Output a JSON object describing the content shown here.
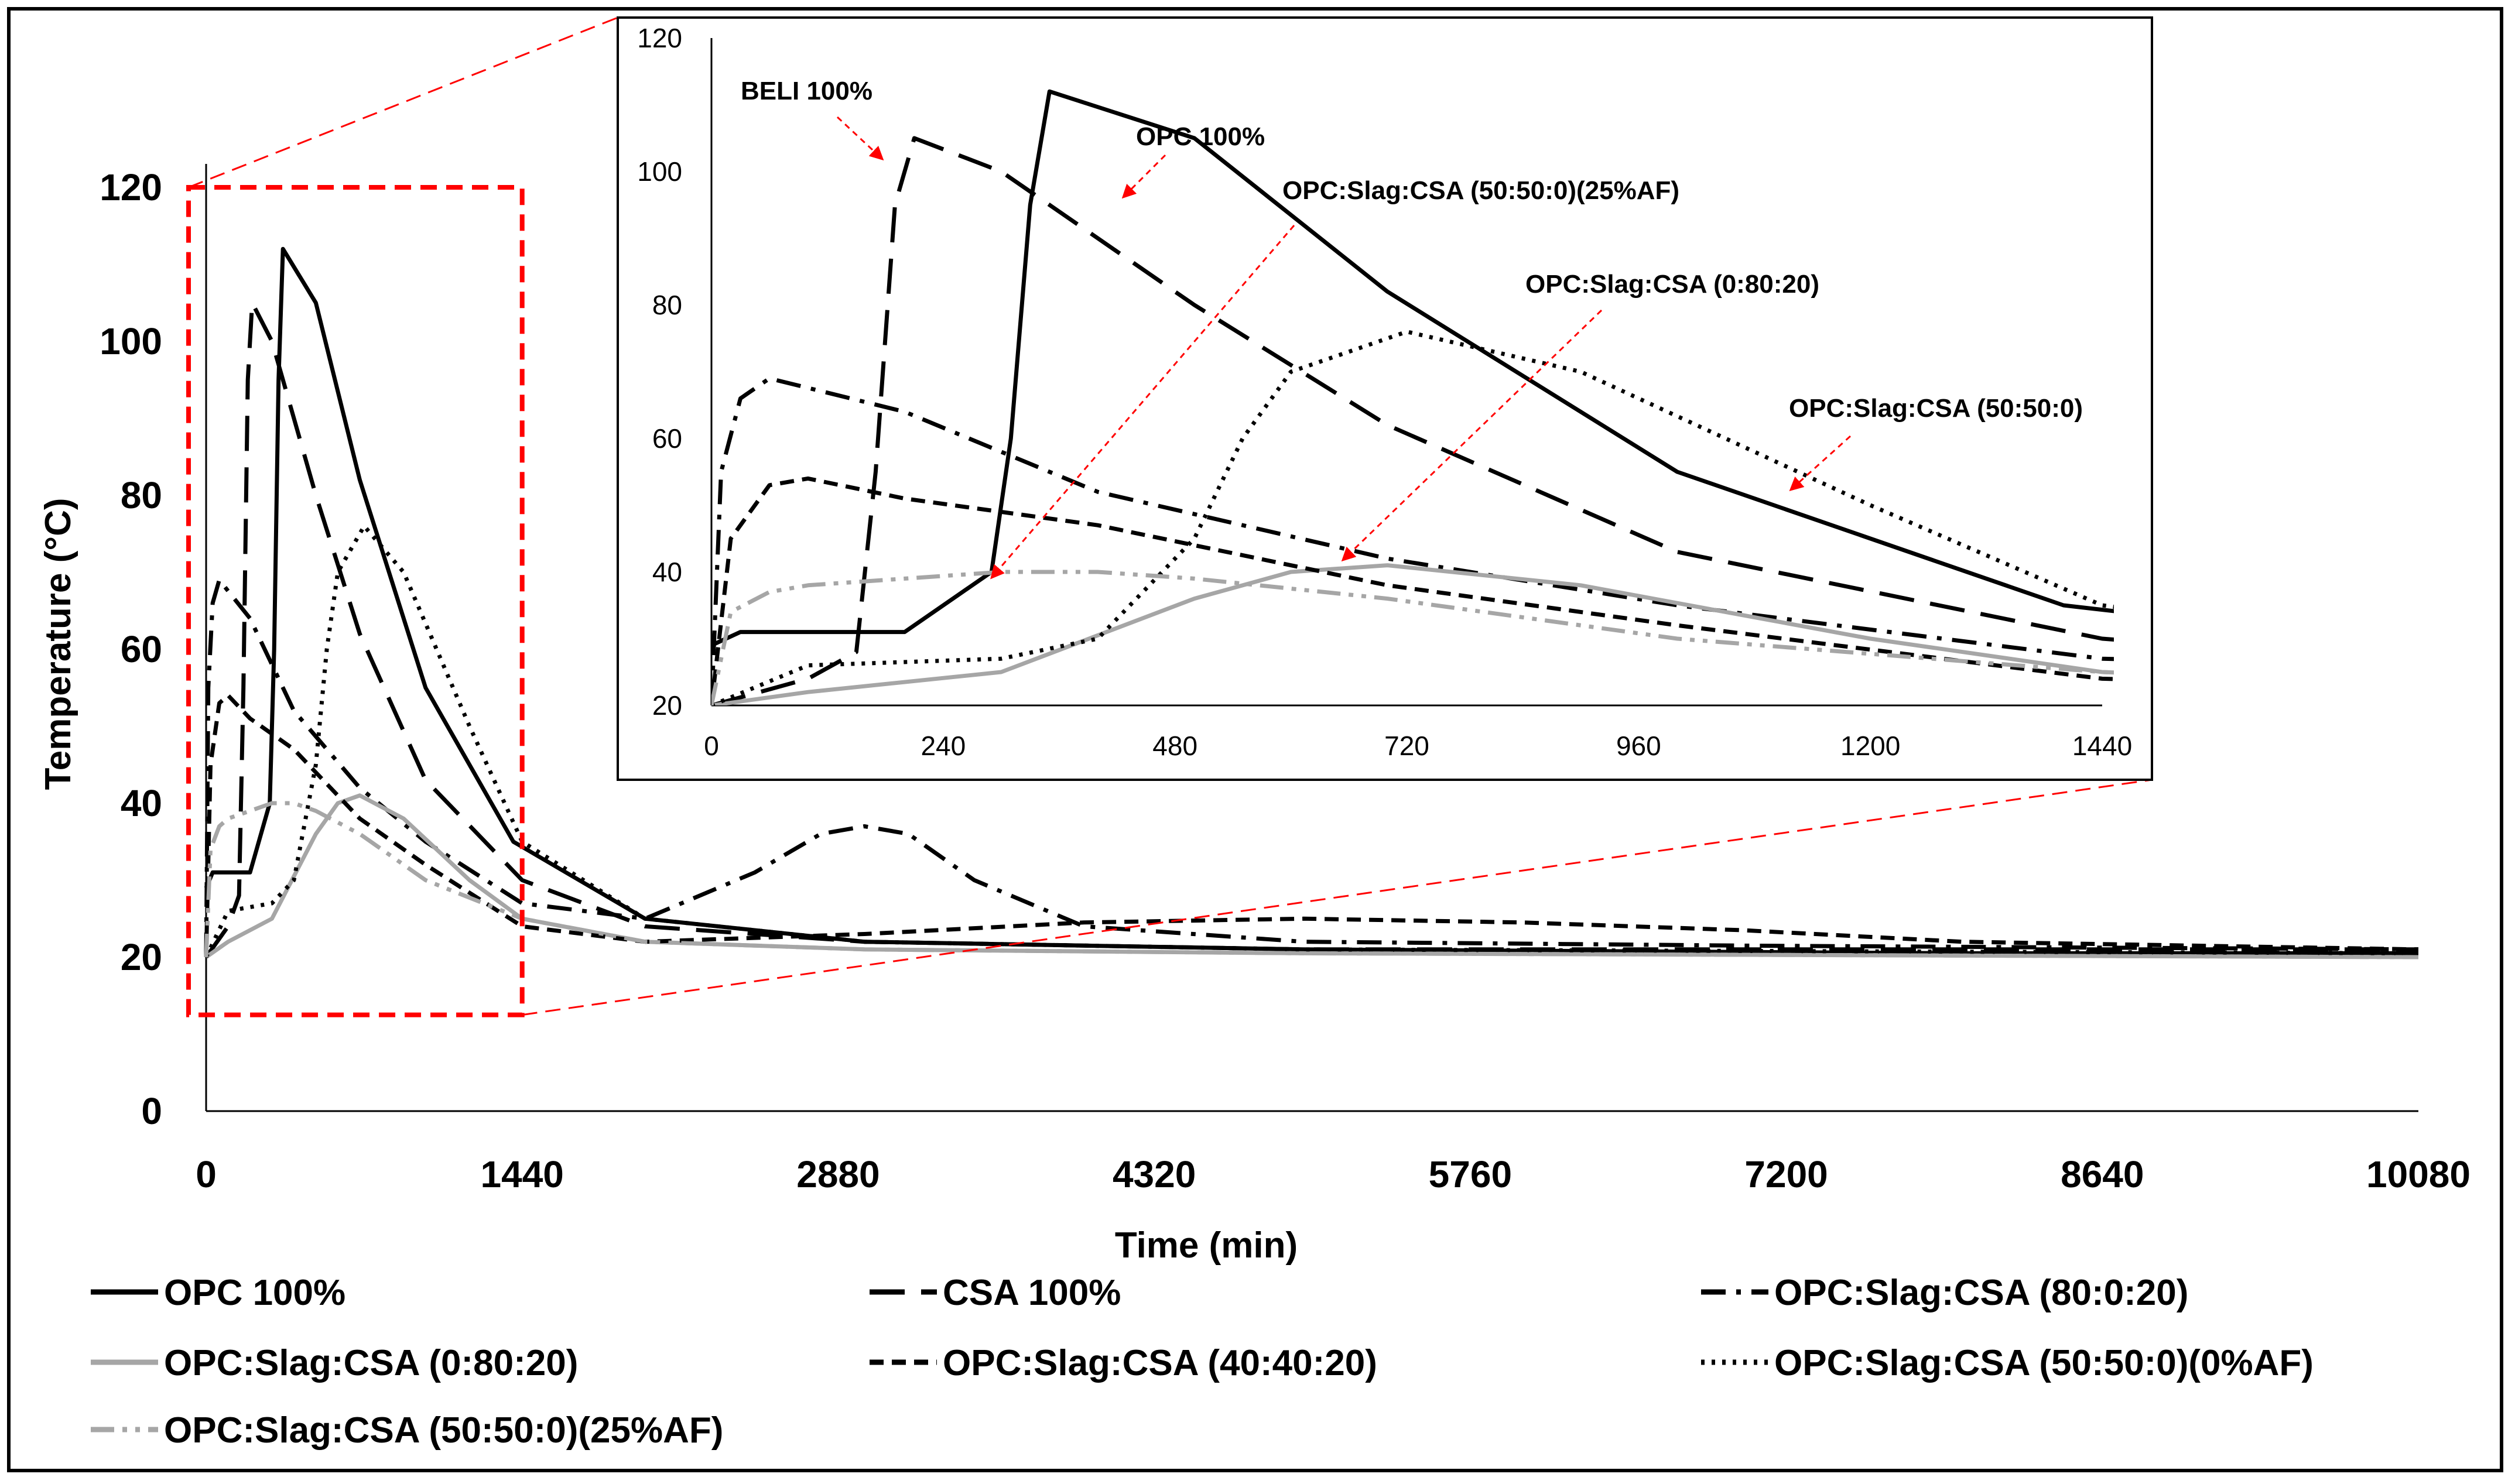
{
  "chart_data": [
    {
      "type": "line",
      "title": "",
      "xlabel": "Time (min)",
      "ylabel": "Temperature (°C)",
      "xlim": [
        0,
        10080
      ],
      "ylim": [
        0,
        120
      ],
      "xticks": [
        "0",
        "1440",
        "2880",
        "4320",
        "5760",
        "7200",
        "8640",
        "10080"
      ],
      "yticks": [
        "0",
        "20",
        "40",
        "60",
        "80",
        "100",
        "120"
      ],
      "series": [
        {
          "name": "OPC 100%",
          "color": "#000000",
          "style": "solid",
          "x": [
            0,
            30,
            200,
            290,
            310,
            330,
            350,
            500,
            700,
            1000,
            1400,
            2000,
            3000,
            5000,
            8000,
            10080
          ],
          "y": [
            29,
            31,
            31,
            40,
            60,
            95,
            112,
            105,
            82,
            55,
            35,
            25,
            22,
            21,
            20.5,
            20.5
          ]
        },
        {
          "name": "CSA 100%",
          "color": "#000000",
          "style": "longdash",
          "x": [
            0,
            100,
            150,
            170,
            190,
            210,
            300,
            500,
            700,
            1000,
            1440,
            2000,
            3000,
            5000,
            8000,
            10080
          ],
          "y": [
            20,
            24,
            28,
            55,
            95,
            105,
            100,
            80,
            62,
            43,
            30,
            24,
            22,
            21,
            21,
            21
          ]
        },
        {
          "name": "OPC:Slag:CSA (80:0:20)",
          "color": "#000000",
          "style": "dashdot",
          "x": [
            0,
            10,
            30,
            60,
            200,
            400,
            700,
            1000,
            1440,
            2000,
            2500,
            2800,
            3000,
            3200,
            3500,
            4000,
            5000,
            7000,
            10080
          ],
          "y": [
            20,
            55,
            66,
            69,
            64,
            52,
            42,
            35,
            27,
            25,
            31,
            36,
            37,
            36,
            30,
            24,
            22,
            21.5,
            21
          ]
        },
        {
          "name": "OPC:Slag:CSA (0:80:20)",
          "color": "#a6a6a6",
          "style": "solid",
          "x": [
            0,
            100,
            300,
            500,
            600,
            700,
            900,
            1200,
            1440,
            2000,
            3000,
            5000,
            10080
          ],
          "y": [
            20,
            22,
            25,
            36,
            40,
            41,
            38,
            30,
            25,
            22,
            21,
            20.5,
            20
          ]
        },
        {
          "name": "OPC:Slag:CSA (40:40:20)",
          "color": "#000000",
          "style": "dash",
          "x": [
            0,
            20,
            60,
            100,
            200,
            400,
            700,
            1000,
            1440,
            2000,
            3000,
            4000,
            5000,
            6000,
            7000,
            8000,
            10080
          ],
          "y": [
            20,
            45,
            53,
            54,
            51,
            47,
            38,
            32,
            24,
            22,
            23,
            24.5,
            25,
            24.5,
            23.5,
            22,
            21
          ]
        },
        {
          "name": "OPC:Slag:CSA (50:50:0)(0%AF)",
          "color": "#000000",
          "style": "dot",
          "x": [
            0,
            100,
            300,
            400,
            500,
            550,
            600,
            720,
            900,
            1200,
            1440,
            2000,
            3000,
            5000,
            10080
          ],
          "y": [
            20,
            26,
            27,
            30,
            45,
            60,
            70,
            76,
            70,
            50,
            35,
            25,
            22,
            21,
            20.5
          ]
        },
        {
          "name": "OPC:Slag:CSA (50:50:0)(25%AF)",
          "color": "#a6a6a6",
          "style": "dashdotdot",
          "x": [
            0,
            20,
            60,
            100,
            200,
            300,
            400,
            500,
            700,
            1000,
            1440,
            2000,
            3000,
            5000,
            10080
          ],
          "y": [
            20,
            34,
            37,
            38,
            39,
            40,
            40,
            39,
            36,
            30,
            25,
            22,
            21,
            20.5,
            20
          ]
        }
      ],
      "legend": "bottom"
    },
    {
      "type": "line",
      "title": "",
      "xlabel": "",
      "ylabel": "",
      "xlim": [
        0,
        1440
      ],
      "ylim": [
        20,
        120
      ],
      "xticks": [
        "0",
        "240",
        "480",
        "720",
        "960",
        "1200",
        "1440"
      ],
      "yticks": [
        "20",
        "40",
        "60",
        "80",
        "100",
        "120"
      ],
      "annotations": [
        "BELI 100%",
        "OPC 100%",
        "OPC:Slag:CSA (50:50:0)(25%AF)",
        "OPC:Slag:CSA (0:80:20)",
        "OPC:Slag:CSA (50:50:0)"
      ],
      "legend": "none"
    }
  ],
  "styles": {
    "black": "#000000",
    "gray": "#a6a6a6",
    "highlight": "#ff0000"
  }
}
